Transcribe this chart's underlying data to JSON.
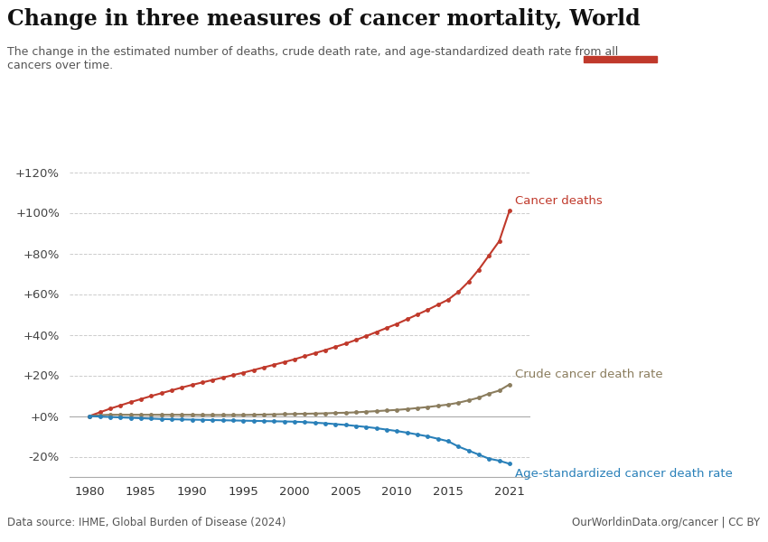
{
  "title": "Change in three measures of cancer mortality, World",
  "subtitle": "The change in the estimated number of deaths, crude death rate, and age-standardized death rate from all\ncancers over time.",
  "source_left": "Data source: IHME, Global Burden of Disease (2024)",
  "source_right": "OurWorldinData.org/cancer | CC BY",
  "logo_bg": "#1a3558",
  "logo_bar": "#c0392b",
  "ylim_min": -0.3,
  "ylim_max": 1.3,
  "yticks": [
    -0.2,
    0.0,
    0.2,
    0.4,
    0.6,
    0.8,
    1.0,
    1.2
  ],
  "ytick_labels": [
    "-20%",
    "+0%",
    "+20%",
    "+40%",
    "+60%",
    "+80%",
    "+100%",
    "+120%"
  ],
  "xlim_min": 1978,
  "xlim_max": 2023,
  "xticks": [
    1980,
    1985,
    1990,
    1995,
    2000,
    2005,
    2010,
    2015,
    2021
  ],
  "background_color": "#ffffff",
  "grid_color": "#cccccc",
  "line_cancer_deaths_color": "#c0392b",
  "line_crude_rate_color": "#8b7d5e",
  "line_age_std_color": "#2980b9",
  "label_cancer_deaths": "Cancer deaths",
  "label_crude": "Crude cancer death rate",
  "label_age_std": "Age-standardized cancer death rate",
  "years": [
    1980,
    1981,
    1982,
    1983,
    1984,
    1985,
    1986,
    1987,
    1988,
    1989,
    1990,
    1991,
    1992,
    1993,
    1994,
    1995,
    1996,
    1997,
    1998,
    1999,
    2000,
    2001,
    2002,
    2003,
    2004,
    2005,
    2006,
    2007,
    2008,
    2009,
    2010,
    2011,
    2012,
    2013,
    2014,
    2015,
    2016,
    2017,
    2018,
    2019,
    2020,
    2021
  ],
  "cancer_deaths": [
    0.0,
    0.018,
    0.036,
    0.052,
    0.068,
    0.083,
    0.098,
    0.112,
    0.126,
    0.14,
    0.153,
    0.165,
    0.177,
    0.189,
    0.201,
    0.213,
    0.226,
    0.239,
    0.252,
    0.265,
    0.279,
    0.294,
    0.309,
    0.324,
    0.34,
    0.356,
    0.374,
    0.393,
    0.413,
    0.433,
    0.453,
    0.476,
    0.499,
    0.522,
    0.547,
    0.572,
    0.61,
    0.66,
    0.72,
    0.79,
    0.86,
    1.01
  ],
  "crude_rate": [
    0.0,
    0.004,
    0.006,
    0.006,
    0.006,
    0.006,
    0.006,
    0.006,
    0.006,
    0.006,
    0.006,
    0.005,
    0.005,
    0.005,
    0.005,
    0.005,
    0.006,
    0.007,
    0.008,
    0.009,
    0.01,
    0.011,
    0.012,
    0.013,
    0.015,
    0.016,
    0.018,
    0.021,
    0.024,
    0.027,
    0.03,
    0.034,
    0.039,
    0.044,
    0.05,
    0.056,
    0.065,
    0.077,
    0.09,
    0.11,
    0.125,
    0.155
  ],
  "age_std_rate": [
    0.0,
    -0.003,
    -0.005,
    -0.007,
    -0.009,
    -0.011,
    -0.013,
    -0.015,
    -0.016,
    -0.017,
    -0.018,
    -0.019,
    -0.02,
    -0.021,
    -0.022,
    -0.023,
    -0.024,
    -0.025,
    -0.026,
    -0.027,
    -0.028,
    -0.03,
    -0.033,
    -0.036,
    -0.04,
    -0.044,
    -0.049,
    -0.054,
    -0.06,
    -0.067,
    -0.074,
    -0.082,
    -0.091,
    -0.1,
    -0.112,
    -0.124,
    -0.15,
    -0.17,
    -0.19,
    -0.21,
    -0.22,
    -0.235
  ]
}
